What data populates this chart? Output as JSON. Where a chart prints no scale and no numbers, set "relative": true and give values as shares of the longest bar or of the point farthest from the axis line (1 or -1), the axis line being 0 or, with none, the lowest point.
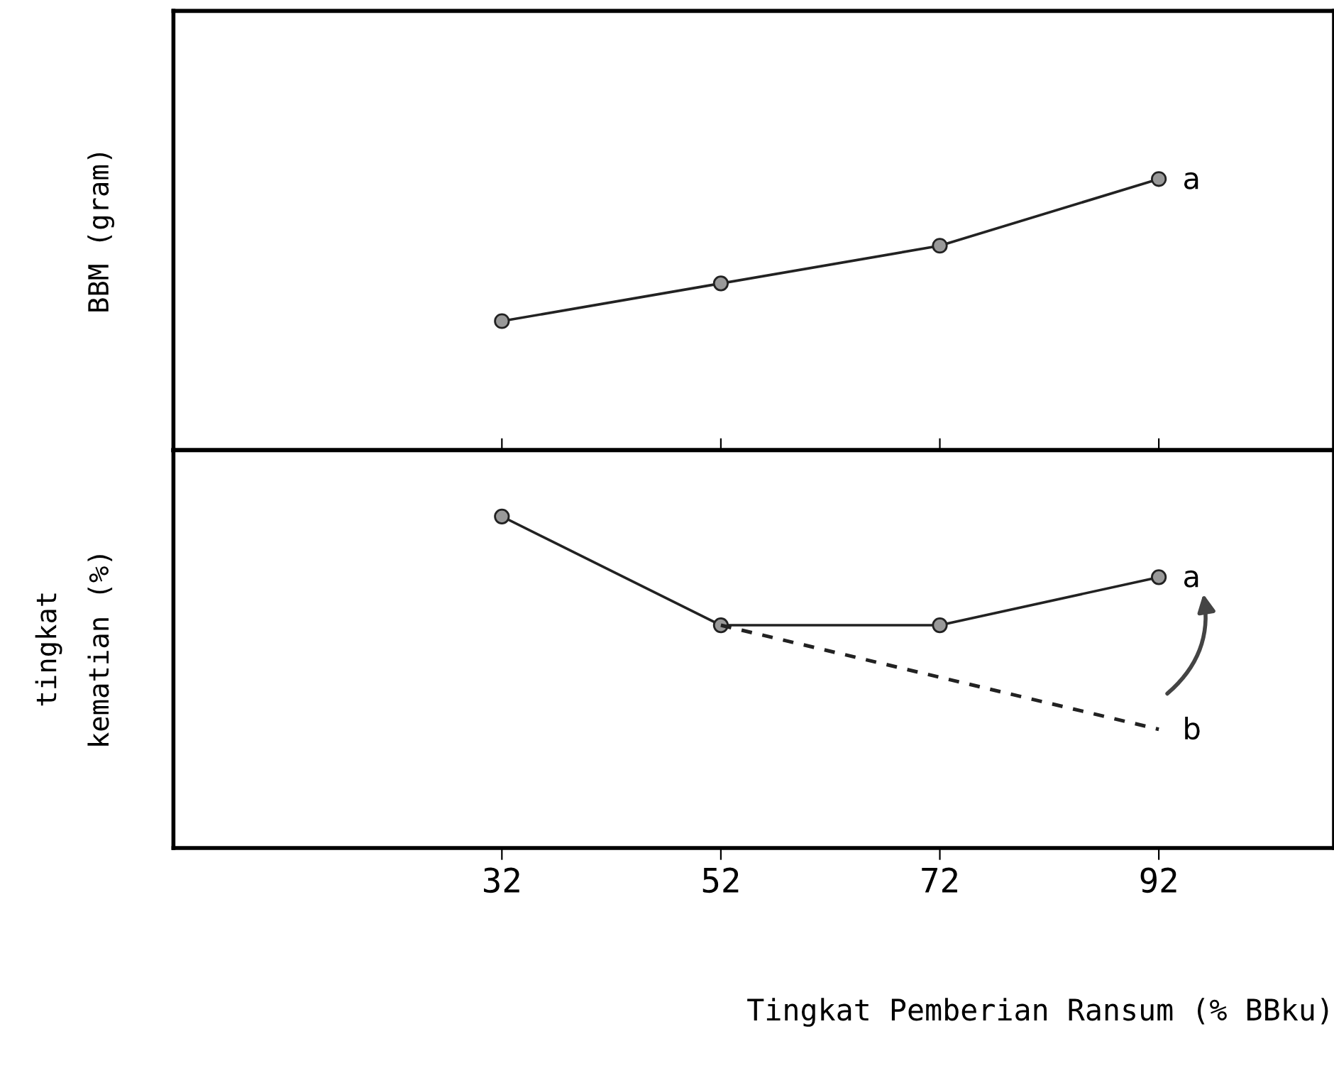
{
  "chart_data": [
    {
      "type": "line",
      "ylabel": "BBM (gram)",
      "relative": true,
      "x": [
        32,
        52,
        72,
        92
      ],
      "xlim": [
        2,
        108
      ],
      "xticks": [
        32,
        52,
        72,
        92
      ],
      "tick_labels": false,
      "marker": "circle",
      "legend": false,
      "series": [
        {
          "name": "a",
          "color": "#222222",
          "values": [
            0.476,
            0.615,
            0.754,
            1
          ],
          "line_style": "solid"
        }
      ]
    },
    {
      "type": "line",
      "ylabel": "tingkat\nkematian (%)",
      "xlabel": "Tingkat Pemberian Ransum (% BBku)",
      "relative": true,
      "x": [
        32,
        52,
        72,
        92
      ],
      "xlim": [
        2,
        108
      ],
      "xticks": [
        32,
        52,
        72,
        92
      ],
      "tick_labels": "x",
      "marker": "circle",
      "legend": false,
      "series": [
        {
          "name": "a",
          "color": "#222222",
          "values": [
            1,
            0.672,
            0.672,
            0.817
          ],
          "line_style": "solid"
        },
        {
          "name": "b",
          "color": "#222222",
          "x": [
            52,
            92
          ],
          "values": [
            0.672,
            0.358
          ],
          "line_style": "dashed",
          "marker": "none"
        }
      ]
    }
  ]
}
